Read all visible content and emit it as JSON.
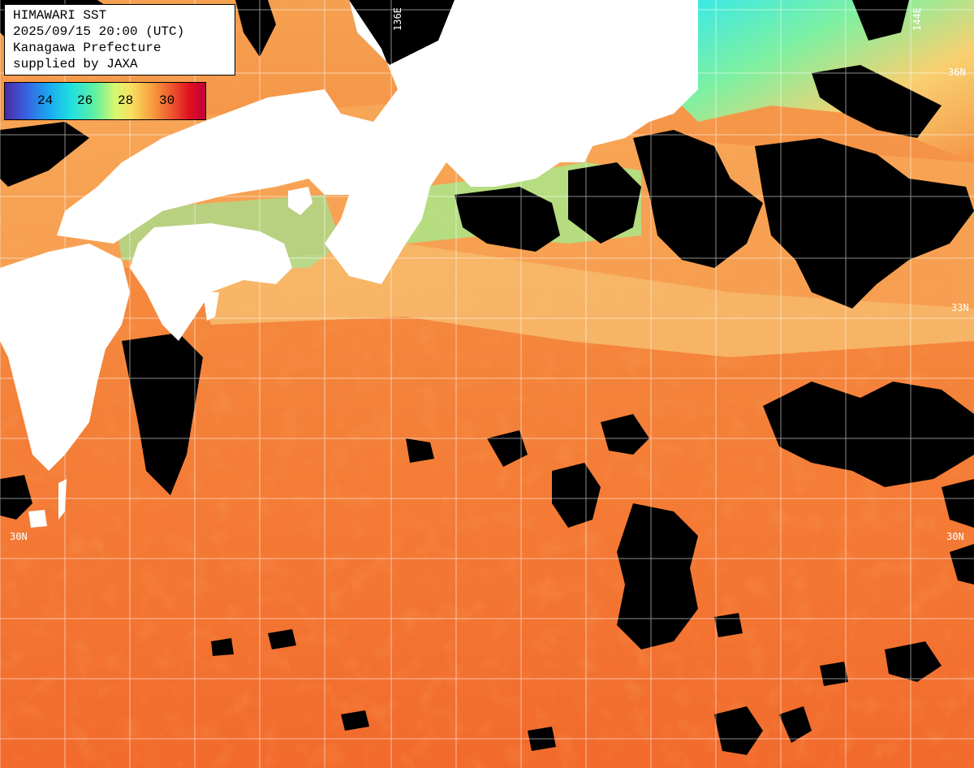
{
  "info": {
    "line1": "HIMAWARI SST",
    "line2": "2025/09/15 20:00 (UTC)",
    "line3": "Kanagawa Prefecture",
    "line4": "supplied by JAXA"
  },
  "colorbar": {
    "ticks": [
      "24",
      "26",
      "28",
      "30"
    ],
    "colors": [
      "#4a2aa0",
      "#3a5de0",
      "#1aa8f0",
      "#20e0e0",
      "#60f0a0",
      "#d8f870",
      "#f8e060",
      "#f8a040",
      "#f06030",
      "#e01020",
      "#c0003a"
    ]
  },
  "gridlabels": {
    "lon_136": "136E",
    "lon_144": "144E",
    "lat_35_right": "36N",
    "lat_33_right": "33N",
    "lat_30_left": "30N",
    "lat_30_right": "30N"
  },
  "colors": {
    "land": "#ffffff",
    "no_data": "#000000",
    "sst_warm": "#f4702e",
    "sst_mid": "#f8b860",
    "sst_cool": "#80f0a0",
    "sst_cold": "#30e8f0",
    "grid": "#ffffff"
  }
}
